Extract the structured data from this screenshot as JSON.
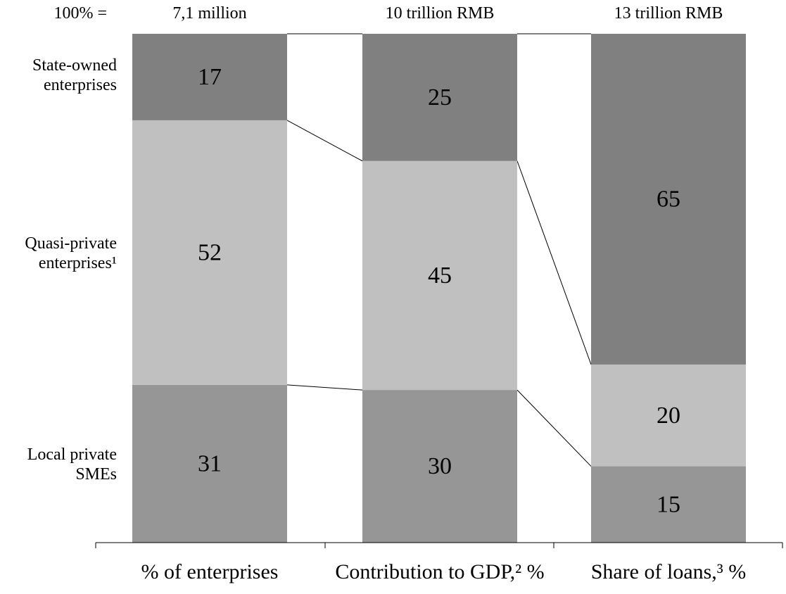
{
  "chart_data": {
    "type": "bar",
    "stacked": "100%",
    "title": "",
    "xlabel": "",
    "ylabel": "",
    "ylim": [
      0,
      100
    ],
    "total_prefix": "100% =",
    "categories": [
      "% of enterprises",
      "Contribution to GDP,² %",
      "Share of loans,³ %"
    ],
    "totals": [
      "7,1 million",
      "10 trillion RMB",
      "13 trillion RMB"
    ],
    "series": [
      {
        "name": "Local private SMEs",
        "label_lines": [
          "Local private",
          "SMEs"
        ],
        "values": [
          31,
          30,
          15
        ],
        "color": "#969696"
      },
      {
        "name": "Quasi-private enterprises¹",
        "label_lines": [
          "Quasi-private",
          "enterprises¹"
        ],
        "values": [
          52,
          45,
          20
        ],
        "color": "#c0c0c0"
      },
      {
        "name": "State-owned enterprises",
        "label_lines": [
          "State-owned",
          "enterprises"
        ],
        "values": [
          17,
          25,
          65
        ],
        "color": "#808080"
      }
    ],
    "legend": "left",
    "grid": false,
    "connector_lines": true
  }
}
